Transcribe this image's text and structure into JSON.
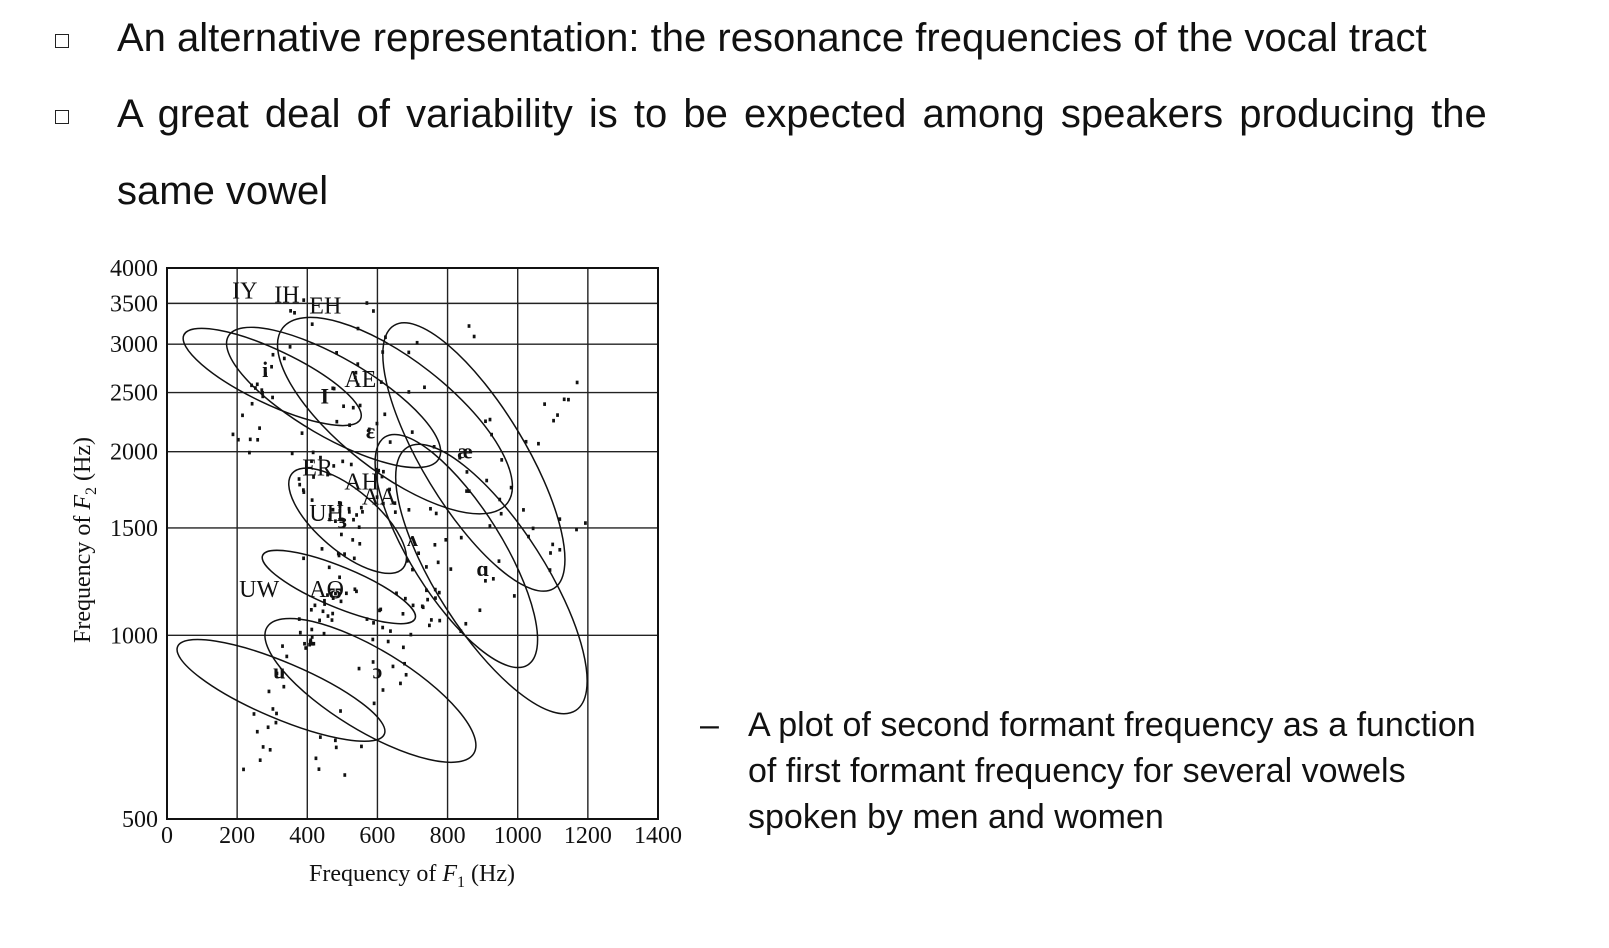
{
  "bullets": [
    {
      "text": "An alternative representation: the resonance frequencies of the vocal tract"
    },
    {
      "line1": "A great deal of variability is to be expected among speakers producing the",
      "line2": "same vowel"
    }
  ],
  "caption": {
    "dash": "–",
    "lines": [
      "A plot of second formant frequency as a function",
      "of first formant frequency for several vowels",
      "spoken by men and women"
    ]
  },
  "chart_data": {
    "type": "scatter",
    "xlabel_prefix": "Frequency of ",
    "xlabel_var": "F",
    "xlabel_sub": "1",
    "xlabel_suffix": " (Hz)",
    "ylabel_prefix": "Frequency of ",
    "ylabel_var": "F",
    "ylabel_sub": "2",
    "ylabel_suffix": " (Hz)",
    "xlim": [
      0,
      1400
    ],
    "ylim": [
      500,
      4000
    ],
    "yscale": "log",
    "grid": true,
    "xticks": [
      "0",
      "200",
      "400",
      "600",
      "800",
      "1000",
      "1200",
      "1400"
    ],
    "xtick_values": [
      0,
      200,
      400,
      600,
      800,
      1000,
      1200,
      1400
    ],
    "yticks": [
      "4000",
      "3500",
      "3000",
      "2500",
      "2000",
      "1500",
      "1000",
      "500"
    ],
    "ytick_values": [
      4000,
      3500,
      3000,
      2500,
      2000,
      1500,
      1000,
      500
    ],
    "regions": [
      {
        "label": "IY",
        "symbol": "i",
        "center": [
          280,
          2650
        ],
        "f1_range": [
          180,
          420
        ],
        "f2_range": [
          1900,
          3700
        ]
      },
      {
        "label": "IH",
        "symbol": "I",
        "center": [
          450,
          2400
        ],
        "f1_range": [
          300,
          650
        ],
        "f2_range": [
          1650,
          3650
        ]
      },
      {
        "label": "EH",
        "symbol": "ɛ",
        "center": [
          580,
          2100
        ],
        "f1_range": [
          400,
          900
        ],
        "f2_range": [
          1500,
          3500
        ]
      },
      {
        "label": "AE",
        "symbol": "æ",
        "center": [
          850,
          1950
        ],
        "f1_range": [
          500,
          1250
        ],
        "f2_range": [
          1450,
          2650
        ]
      },
      {
        "label": "AH",
        "symbol": "ʌ",
        "center": [
          700,
          1400
        ],
        "f1_range": [
          500,
          1150
        ],
        "f2_range": [
          1050,
          1800
        ]
      },
      {
        "label": "AA",
        "symbol": "ɑ",
        "center": [
          900,
          1250
        ],
        "f1_range": [
          550,
          1300
        ],
        "f2_range": [
          900,
          1700
        ]
      },
      {
        "label": "ER",
        "symbol": "ɜ",
        "center": [
          500,
          1500
        ],
        "f1_range": [
          380,
          650
        ],
        "f2_range": [
          1250,
          1900
        ]
      },
      {
        "label": "UH",
        "symbol": "ʊ",
        "center": [
          480,
          1150
        ],
        "f1_range": [
          400,
          580
        ],
        "f2_range": [
          900,
          1600
        ]
      },
      {
        "label": "UW",
        "symbol": "u",
        "center": [
          320,
          850
        ],
        "f1_range": [
          200,
          450
        ],
        "f2_range": [
          550,
          1200
        ]
      },
      {
        "label": "AO",
        "symbol": "ɔ",
        "center": [
          600,
          850
        ],
        "f1_range": [
          400,
          760
        ],
        "f2_range": [
          550,
          1200
        ]
      }
    ]
  }
}
